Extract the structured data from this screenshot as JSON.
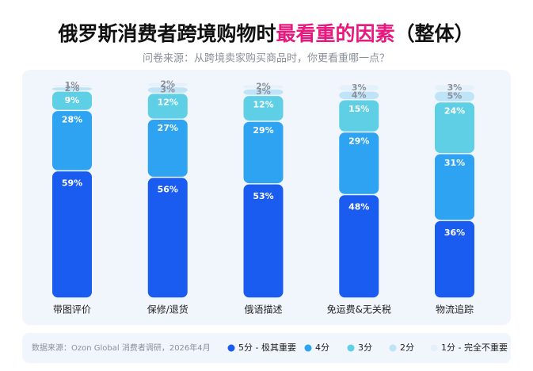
{
  "chart_data": {
    "type": "stacked_bar",
    "title": {
      "prefix": "俄罗斯消费者跨境购物时",
      "highlight": "最看重的因素",
      "suffix": "（整体）",
      "highlight_color": "#e8197e"
    },
    "subtitle": "问卷来源：从跨境卖家购买商品时，你更看重哪一点？",
    "source": "数据来源：Ozon Global 消费者调研，2026年4月",
    "categories": [
      "带图评价",
      "保修/退货",
      "俄语描述",
      "免运费&无关税",
      "物流追踪"
    ],
    "series": [
      {
        "name": "5分 - 极其重要",
        "color": "#1a5cf0",
        "label_color": "#ffffff",
        "values": [
          59,
          56,
          53,
          48,
          36
        ],
        "value_labels": [
          "59%",
          "56%",
          "53%",
          "48%",
          "36%"
        ]
      },
      {
        "name": "4分",
        "color": "#2ea3f2",
        "label_color": "#ffffff",
        "values": [
          28,
          27,
          29,
          29,
          31
        ],
        "value_labels": [
          "28%",
          "27%",
          "29%",
          "29%",
          "31%"
        ]
      },
      {
        "name": "3分",
        "color": "#5fcfe6",
        "label_color": "#ffffff",
        "values": [
          9,
          12,
          12,
          15,
          24
        ],
        "value_labels": [
          "9%",
          "12%",
          "12%",
          "15%",
          "24%"
        ]
      },
      {
        "name": "2分",
        "color": "#bfe3f7",
        "label_color": "#8a8f99",
        "values": [
          2,
          3,
          3,
          4,
          5
        ],
        "value_labels": [
          "2%",
          "3%",
          "3%",
          "4%",
          "5%"
        ]
      },
      {
        "name": "1分 - 完全不重要",
        "color": "#e4f1fb",
        "label_color": "#8a8f99",
        "values": [
          1,
          2,
          2,
          3,
          3
        ],
        "value_labels": [
          "1%",
          "2%",
          "2%",
          "3%",
          "3%"
        ]
      }
    ]
  }
}
